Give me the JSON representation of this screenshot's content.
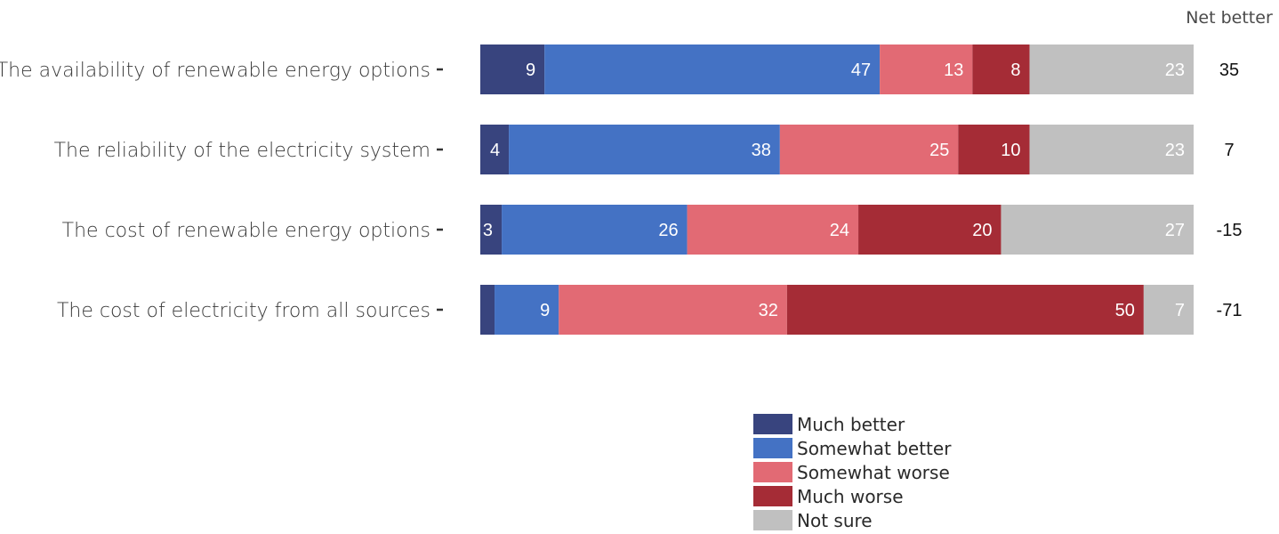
{
  "chart_data": {
    "type": "bar",
    "orientation": "horizontal",
    "stacked": true,
    "categories": [
      "The availability of renewable energy options",
      "The reliability of the electricity system",
      "The cost of renewable energy options",
      "The cost of electricity from all sources"
    ],
    "series": [
      {
        "name": "Much better",
        "color": "#38447e",
        "values": [
          9,
          4,
          3,
          2
        ]
      },
      {
        "name": "Somewhat better",
        "color": "#4472c4",
        "values": [
          47,
          38,
          26,
          9
        ]
      },
      {
        "name": "Somewhat worse",
        "color": "#e26a74",
        "values": [
          13,
          25,
          24,
          32
        ]
      },
      {
        "name": "Much worse",
        "color": "#a52c36",
        "values": [
          8,
          10,
          20,
          50
        ]
      },
      {
        "name": "Not sure",
        "color": "#c0c0c0",
        "values": [
          23,
          23,
          27,
          7
        ]
      }
    ],
    "segment_labels": [
      [
        "9",
        "47",
        "13",
        "8",
        "23"
      ],
      [
        "4",
        "38",
        "25",
        "10",
        "23"
      ],
      [
        "3",
        "26",
        "24",
        "20",
        "27"
      ],
      [
        "",
        "9",
        "32",
        "50",
        "7"
      ]
    ],
    "net_title": "Net better",
    "net_values": [
      "35",
      "7",
      "-15",
      "-71"
    ],
    "xlim": [
      0,
      100
    ],
    "grid": false,
    "legend_position": "bottom"
  }
}
